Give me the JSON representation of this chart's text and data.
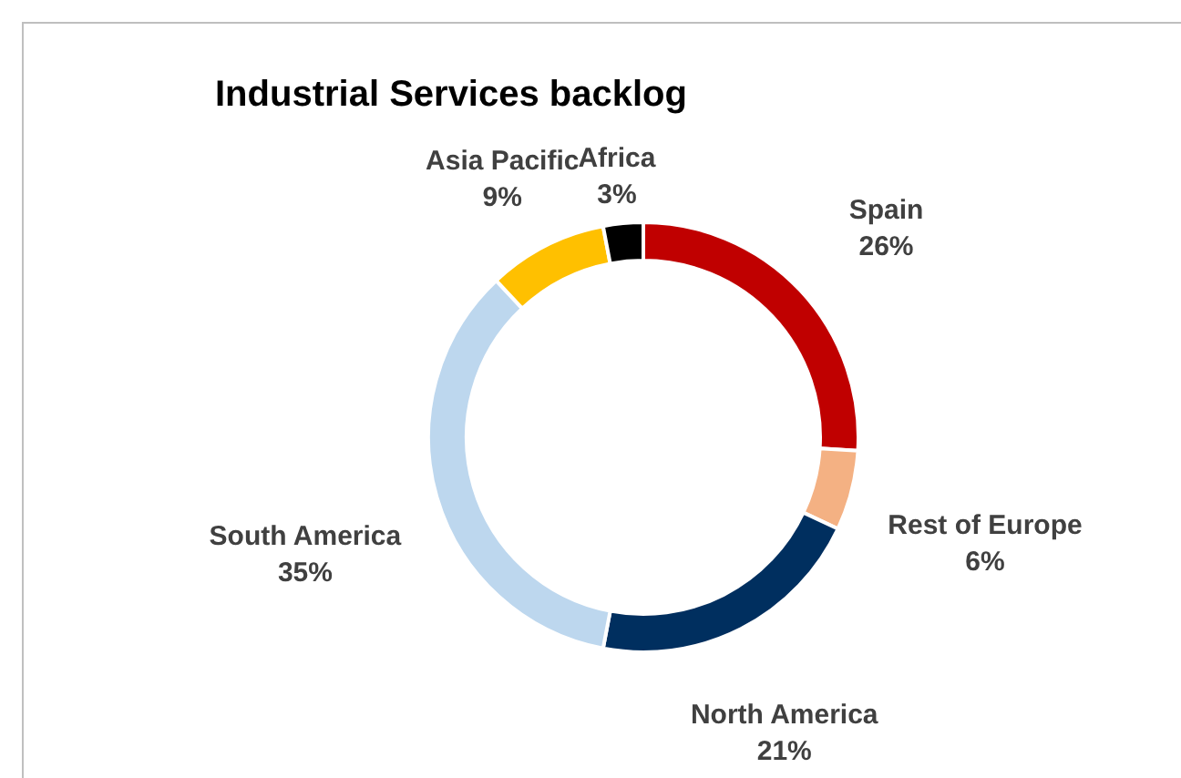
{
  "chart_data": {
    "type": "donut",
    "title": "Industrial Services backlog",
    "categories": [
      "Spain",
      "Rest of Europe",
      "North America",
      "South America",
      "Asia Pacific",
      "Africa"
    ],
    "values": [
      26,
      6,
      21,
      35,
      9,
      3
    ],
    "colors": [
      "#c00000",
      "#f4b183",
      "#002f5f",
      "#bdd7ee",
      "#ffc000",
      "#000000"
    ],
    "value_labels": [
      "26%",
      "6%",
      "21%",
      "35%",
      "9%",
      "3%"
    ]
  }
}
